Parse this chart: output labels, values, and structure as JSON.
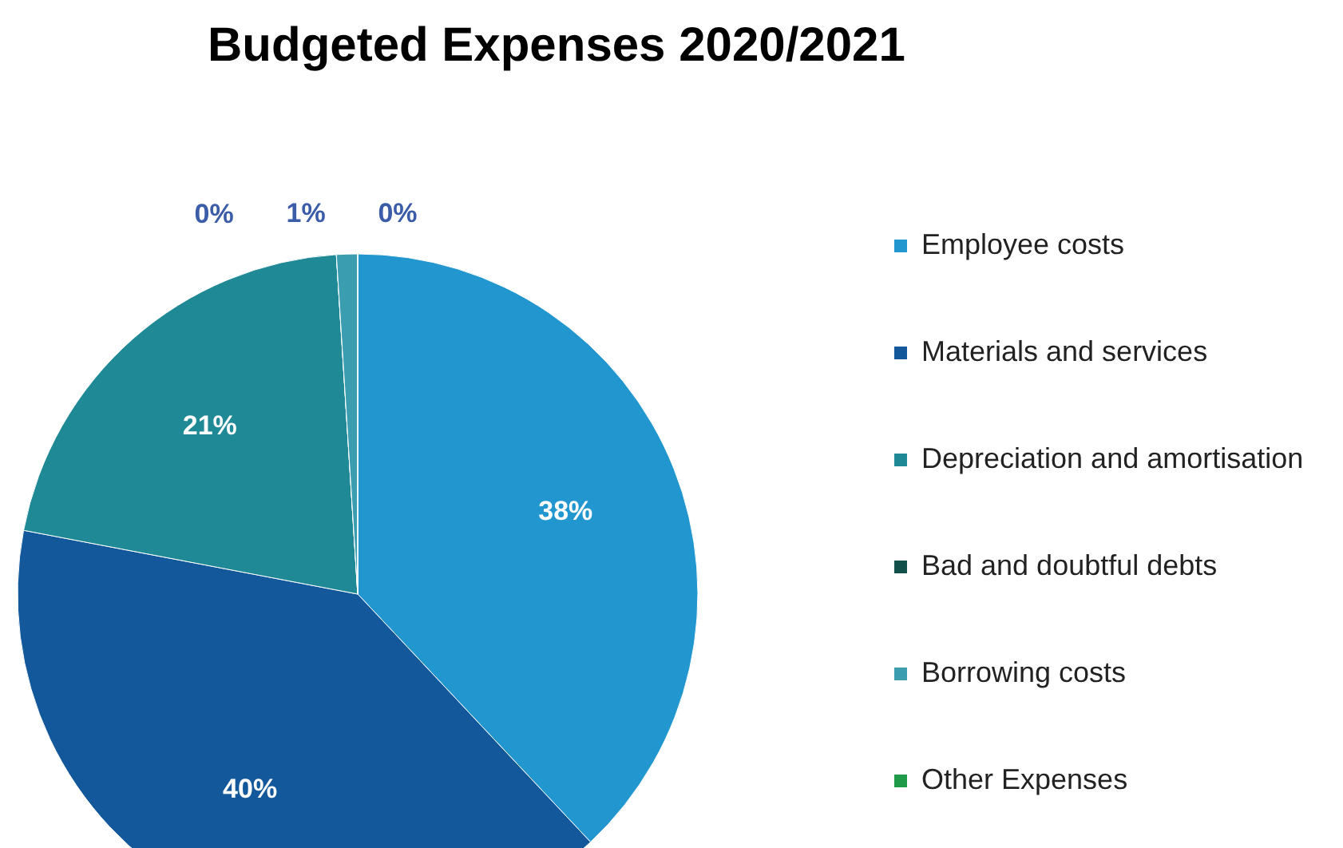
{
  "chart_data": {
    "type": "pie",
    "title": "Budgeted  Expenses 2020/2021",
    "categories": [
      "Employee costs",
      "Materials and services",
      "Depreciation and amortisation",
      "Bad and doubtful debts",
      "Borrowing costs",
      "Other Expenses"
    ],
    "values": [
      38,
      40,
      21,
      0,
      1,
      0
    ],
    "colors": [
      "#2196cf",
      "#13589a",
      "#1f8a96",
      "#13504c",
      "#3a9db0",
      "#1e9a48"
    ],
    "value_labels": [
      "38%",
      "40%",
      "21%",
      "0%",
      "1%",
      "0%"
    ],
    "legend": "right"
  }
}
